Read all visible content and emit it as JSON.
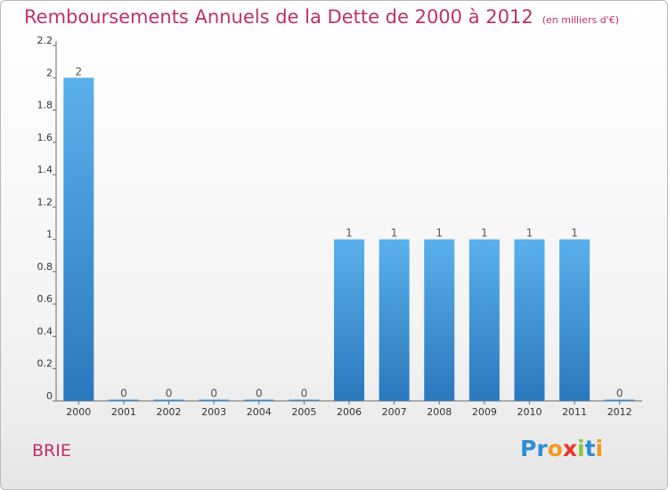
{
  "title": "Remboursements Annuels de la Dette de 2000 à 2012",
  "unit": "(en milliers d'€)",
  "commune": "BRIE",
  "logo": {
    "letters": [
      "P",
      "r",
      "o",
      "x",
      "i",
      "t",
      "i"
    ],
    "colors": [
      "#2d8ed6",
      "#2d8ed6",
      "#f39a1e",
      "#e8362d",
      "#8cc63f",
      "#2d8ed6",
      "#f39a1e"
    ]
  },
  "colors": {
    "bar_light": "#5ab0ec",
    "bar_dark": "#2a78bd",
    "accent": "#c0306a"
  },
  "chart_data": {
    "type": "bar",
    "categories": [
      "2000",
      "2001",
      "2002",
      "2003",
      "2004",
      "2005",
      "2006",
      "2007",
      "2008",
      "2009",
      "2010",
      "2011",
      "2012"
    ],
    "values": [
      2,
      0,
      0,
      0,
      0,
      0,
      1,
      1,
      1,
      1,
      1,
      1,
      0
    ],
    "data_labels": [
      "2",
      "0",
      "0",
      "0",
      "0",
      "0",
      "1",
      "1",
      "1",
      "1",
      "1",
      "1",
      "0"
    ],
    "yticks": [
      0,
      0.2,
      0.4,
      0.6,
      0.8,
      1,
      1.2,
      1.4,
      1.6,
      1.8,
      2,
      2.2
    ],
    "ytick_labels": [
      "0",
      "0.2",
      "0.4",
      "0.6",
      "0.8",
      "1",
      "1.2",
      "1.4",
      "1.6",
      "1.8",
      "2",
      "2.2"
    ],
    "ylim": [
      0,
      2.2
    ],
    "grid": false,
    "legend": "none"
  }
}
